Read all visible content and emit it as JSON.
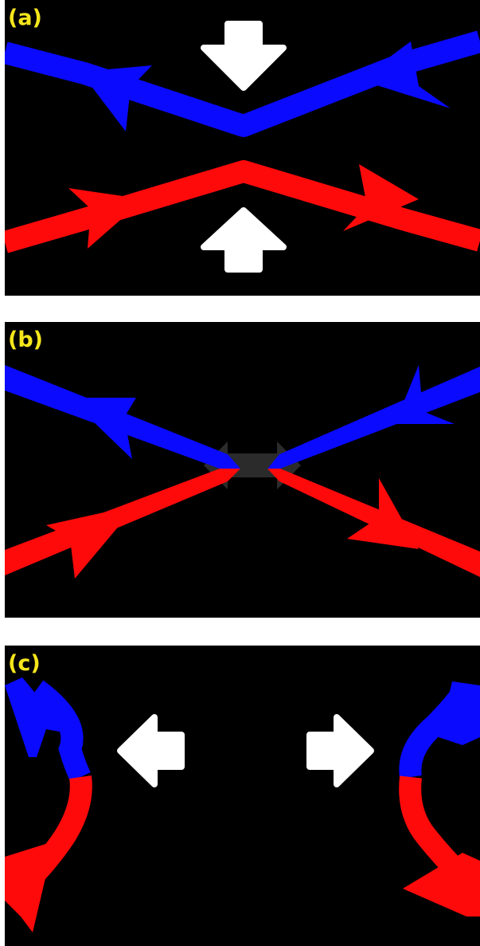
{
  "colors": {
    "background": "#000000",
    "frame": "#ffffff",
    "label": "#f5e61c",
    "upper_line": "#0a0aff",
    "lower_line": "#ff0a0a",
    "push_arrow": "#ffffff",
    "faded_arrow": "#2b2b2b"
  },
  "panels": [
    {
      "label": "(a)",
      "arrows": "converging"
    },
    {
      "label": "(b)",
      "arrows": "faded"
    },
    {
      "label": "(c)",
      "arrows": "diverging"
    }
  ],
  "icons": [
    "push-down-arrow-icon",
    "push-up-arrow-icon",
    "push-left-arrow-icon",
    "push-right-arrow-icon",
    "line-direction-arrowhead-icon"
  ]
}
